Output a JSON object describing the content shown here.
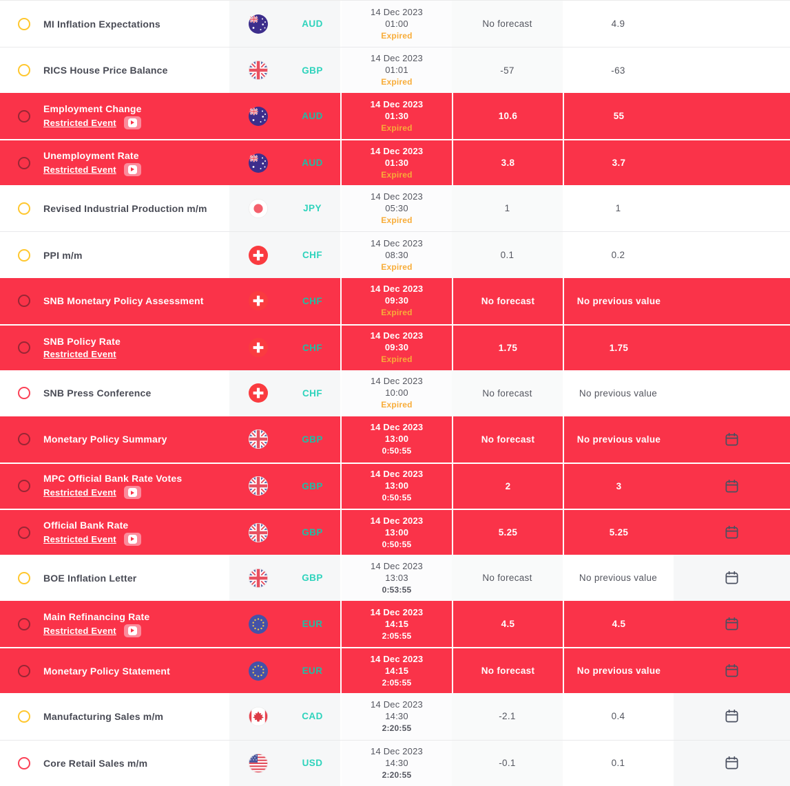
{
  "labels": {
    "restricted_event": "Restricted Event"
  },
  "colors": {
    "highlight_row_bg": "#FA3349",
    "currency_teal": "#2ED3BC",
    "currency_teal_on_red": "#1FBFA6",
    "expired_amber": "#F8AC38",
    "impact_yellow": "#FFC72E",
    "impact_red": "#FB4156",
    "calendar_icon_slate": "#4A5060"
  },
  "rows": [
    {
      "name": "MI Inflation Expectations",
      "restricted": false,
      "has_play": false,
      "highlight": false,
      "impact": "yellow",
      "flag": "aud-flag",
      "currency": "AUD",
      "date": "14 Dec 2023",
      "time": "01:00",
      "status": "Expired",
      "status_type": "expired",
      "forecast": "No forecast",
      "previous": "4.9",
      "has_calendar": false
    },
    {
      "name": "RICS House Price Balance",
      "restricted": false,
      "has_play": false,
      "highlight": false,
      "impact": "yellow",
      "flag": "gbp-flag",
      "currency": "GBP",
      "date": "14 Dec 2023",
      "time": "01:01",
      "status": "Expired",
      "status_type": "expired",
      "forecast": "-57",
      "previous": "-63",
      "has_calendar": false
    },
    {
      "name": "Employment Change",
      "restricted": true,
      "has_play": true,
      "highlight": true,
      "impact": "dark",
      "flag": "aud-flag",
      "currency": "AUD",
      "date": "14 Dec 2023",
      "time": "01:30",
      "status": "Expired",
      "status_type": "expired",
      "forecast": "10.6",
      "previous": "55",
      "has_calendar": false
    },
    {
      "name": "Unemployment Rate",
      "restricted": true,
      "has_play": true,
      "highlight": true,
      "impact": "dark",
      "flag": "aud-flag",
      "currency": "AUD",
      "date": "14 Dec 2023",
      "time": "01:30",
      "status": "Expired",
      "status_type": "expired",
      "forecast": "3.8",
      "previous": "3.7",
      "has_calendar": false
    },
    {
      "name": "Revised Industrial Production m/m",
      "restricted": false,
      "has_play": false,
      "highlight": false,
      "impact": "yellow",
      "flag": "jpy-flag",
      "currency": "JPY",
      "date": "14 Dec 2023",
      "time": "05:30",
      "status": "Expired",
      "status_type": "expired",
      "forecast": "1",
      "previous": "1",
      "has_calendar": false
    },
    {
      "name": "PPI m/m",
      "restricted": false,
      "has_play": false,
      "highlight": false,
      "impact": "yellow",
      "flag": "chf-flag",
      "currency": "CHF",
      "date": "14 Dec 2023",
      "time": "08:30",
      "status": "Expired",
      "status_type": "expired",
      "forecast": "0.1",
      "previous": "0.2",
      "has_calendar": false
    },
    {
      "name": "SNB Monetary Policy Assessment",
      "restricted": false,
      "has_play": false,
      "highlight": true,
      "impact": "dark",
      "flag": "chf-flag",
      "currency": "CHF",
      "date": "14 Dec 2023",
      "time": "09:30",
      "status": "Expired",
      "status_type": "expired",
      "forecast": "No forecast",
      "previous": "No previous value",
      "has_calendar": false
    },
    {
      "name": "SNB Policy Rate",
      "restricted": true,
      "has_play": false,
      "highlight": true,
      "impact": "dark",
      "flag": "chf-flag",
      "currency": "CHF",
      "date": "14 Dec 2023",
      "time": "09:30",
      "status": "Expired",
      "status_type": "expired",
      "forecast": "1.75",
      "previous": "1.75",
      "has_calendar": false
    },
    {
      "name": "SNB Press Conference",
      "restricted": false,
      "has_play": false,
      "highlight": false,
      "impact": "red",
      "flag": "chf-flag",
      "currency": "CHF",
      "date": "14 Dec 2023",
      "time": "10:00",
      "status": "Expired",
      "status_type": "expired",
      "forecast": "No forecast",
      "previous": "No previous value",
      "has_calendar": false
    },
    {
      "name": "Monetary Policy Summary",
      "restricted": false,
      "has_play": false,
      "highlight": true,
      "impact": "dark",
      "flag": "gbp-flag",
      "currency": "GBP",
      "date": "14 Dec 2023",
      "time": "13:00",
      "status": "0:50:55",
      "status_type": "countdown",
      "forecast": "No forecast",
      "previous": "No previous value",
      "has_calendar": true
    },
    {
      "name": "MPC Official Bank Rate Votes",
      "restricted": true,
      "has_play": true,
      "highlight": true,
      "impact": "dark",
      "flag": "gbp-flag",
      "currency": "GBP",
      "date": "14 Dec 2023",
      "time": "13:00",
      "status": "0:50:55",
      "status_type": "countdown",
      "forecast": "2",
      "previous": "3",
      "has_calendar": true
    },
    {
      "name": "Official Bank Rate",
      "restricted": true,
      "has_play": true,
      "highlight": true,
      "impact": "dark",
      "flag": "gbp-flag",
      "currency": "GBP",
      "date": "14 Dec 2023",
      "time": "13:00",
      "status": "0:50:55",
      "status_type": "countdown",
      "forecast": "5.25",
      "previous": "5.25",
      "has_calendar": true
    },
    {
      "name": "BOE Inflation Letter",
      "restricted": false,
      "has_play": false,
      "highlight": false,
      "impact": "yellow",
      "flag": "gbp-flag",
      "currency": "GBP",
      "date": "14 Dec 2023",
      "time": "13:03",
      "status": "0:53:55",
      "status_type": "countdown",
      "forecast": "No forecast",
      "previous": "No previous value",
      "has_calendar": true
    },
    {
      "name": "Main Refinancing Rate",
      "restricted": true,
      "has_play": true,
      "highlight": true,
      "impact": "dark",
      "flag": "eur-flag",
      "currency": "EUR",
      "date": "14 Dec 2023",
      "time": "14:15",
      "status": "2:05:55",
      "status_type": "countdown",
      "forecast": "4.5",
      "previous": "4.5",
      "has_calendar": true
    },
    {
      "name": "Monetary Policy Statement",
      "restricted": false,
      "has_play": false,
      "highlight": true,
      "impact": "dark",
      "flag": "eur-flag",
      "currency": "EUR",
      "date": "14 Dec 2023",
      "time": "14:15",
      "status": "2:05:55",
      "status_type": "countdown",
      "forecast": "No forecast",
      "previous": "No previous value",
      "has_calendar": true
    },
    {
      "name": "Manufacturing Sales m/m",
      "restricted": false,
      "has_play": false,
      "highlight": false,
      "impact": "yellow",
      "flag": "cad-flag",
      "currency": "CAD",
      "date": "14 Dec 2023",
      "time": "14:30",
      "status": "2:20:55",
      "status_type": "countdown",
      "forecast": "-2.1",
      "previous": "0.4",
      "has_calendar": true
    },
    {
      "name": "Core Retail Sales m/m",
      "restricted": false,
      "has_play": false,
      "highlight": false,
      "impact": "red",
      "flag": "usd-flag",
      "currency": "USD",
      "date": "14 Dec 2023",
      "time": "14:30",
      "status": "2:20:55",
      "status_type": "countdown",
      "forecast": "-0.1",
      "previous": "0.1",
      "has_calendar": true
    }
  ]
}
